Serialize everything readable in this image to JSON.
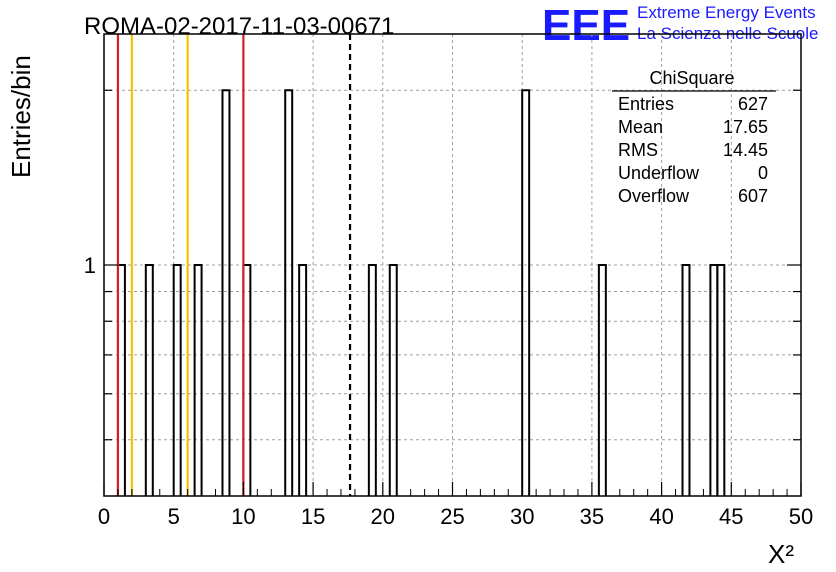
{
  "header": {
    "run_title": "ROMA-02-2017-11-03-00671"
  },
  "logo": {
    "mark": "EEE",
    "line1": "Extreme Energy Events",
    "line2": "La Scienza nelle Scuole",
    "color": "#1a1aff"
  },
  "chart_data": {
    "type": "histogram",
    "xlabel": "X²",
    "ylabel": "Entries/bin",
    "xlim": [
      0,
      50
    ],
    "ylim": [
      0.4,
      2.5
    ],
    "y_scale": "log",
    "x_ticks": [
      "0",
      "5",
      "10",
      "15",
      "20",
      "25",
      "30",
      "35",
      "40",
      "45",
      "50"
    ],
    "y_tick_labels": [
      {
        "value": 1,
        "label": "1"
      }
    ],
    "grid": true,
    "bin_width": 0.5,
    "bins": [
      {
        "x": 1.0,
        "count": 1
      },
      {
        "x": 3.0,
        "count": 1
      },
      {
        "x": 5.0,
        "count": 1
      },
      {
        "x": 6.5,
        "count": 1
      },
      {
        "x": 8.5,
        "count": 2
      },
      {
        "x": 10.0,
        "count": 1
      },
      {
        "x": 13.0,
        "count": 2
      },
      {
        "x": 14.0,
        "count": 1
      },
      {
        "x": 19.0,
        "count": 1
      },
      {
        "x": 20.5,
        "count": 1
      },
      {
        "x": 30.0,
        "count": 2
      },
      {
        "x": 35.5,
        "count": 1
      },
      {
        "x": 41.5,
        "count": 1
      },
      {
        "x": 43.5,
        "count": 1
      },
      {
        "x": 44.0,
        "count": 1
      }
    ],
    "vertical_lines": [
      {
        "x": 1.0,
        "color": "#d42020",
        "style": "solid"
      },
      {
        "x": 2.0,
        "color": "#f2c200",
        "style": "solid"
      },
      {
        "x": 6.0,
        "color": "#f2c200",
        "style": "solid"
      },
      {
        "x": 10.0,
        "color": "#d42020",
        "style": "solid"
      },
      {
        "x": 17.65,
        "color": "#000000",
        "style": "dashed"
      }
    ]
  },
  "stats_box": {
    "title": "ChiSquare",
    "rows": [
      {
        "label": "Entries",
        "value": "627"
      },
      {
        "label": "Mean",
        "value": "17.65"
      },
      {
        "label": "RMS",
        "value": "14.45"
      },
      {
        "label": "Underflow",
        "value": "0"
      },
      {
        "label": "Overflow",
        "value": "607"
      }
    ]
  }
}
